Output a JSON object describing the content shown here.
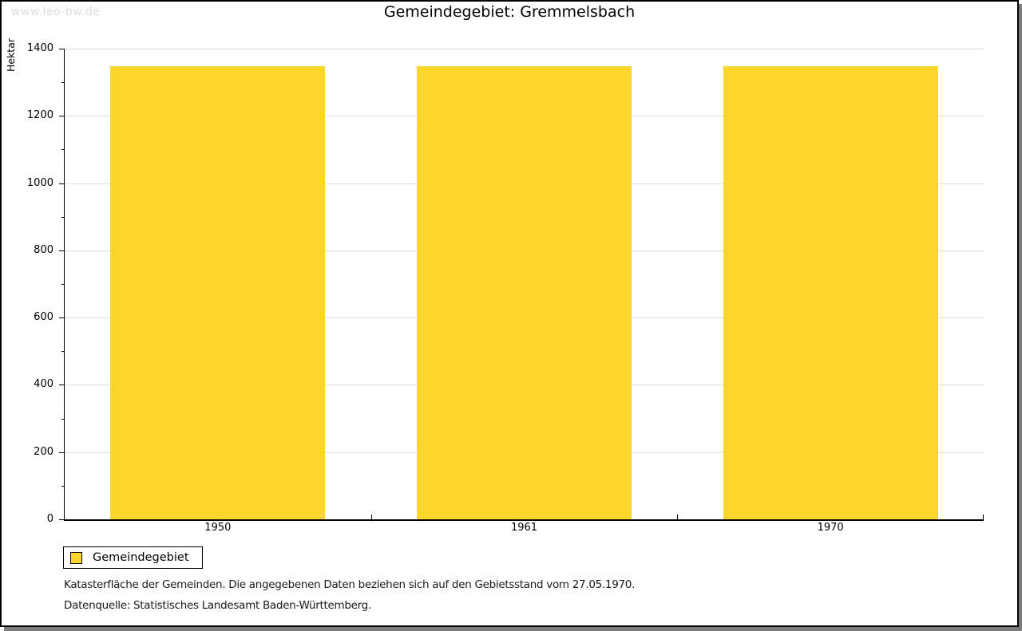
{
  "watermark": "www.leo-bw.de",
  "title": "Gemeindegebiet: Gremmelsbach",
  "chart_data": {
    "type": "bar",
    "title": "Gemeindegebiet: Gremmelsbach",
    "categories": [
      "1950",
      "1961",
      "1970"
    ],
    "series": [
      {
        "name": "Gemeindegebiet",
        "values": [
          1347,
          1347,
          1347
        ]
      }
    ],
    "xlabel": "",
    "ylabel": "Hektar",
    "ylim": [
      0,
      1400
    ],
    "ytick_step": 200,
    "minor_tick_step": 100,
    "grid": true,
    "legend_position": "bottom-left",
    "bar_color": "#fcd52d"
  },
  "legend": {
    "items": [
      {
        "label": "Gemeindegebiet",
        "color": "#fcd52d"
      }
    ]
  },
  "footnotes": [
    "Katasterfläche der Gemeinden. Die angegebenen Daten beziehen sich auf den Gebietsstand vom 27.05.1970.",
    "Datenquelle: Statistisches Landesamt Baden-Württemberg."
  ],
  "colors": {
    "bar": "#fcd52d",
    "gridline": "#dcdcdc",
    "axis": "#000000",
    "watermark": "#dedede",
    "frame_shadow": "#7d7d7d",
    "background": "#ffffff"
  }
}
